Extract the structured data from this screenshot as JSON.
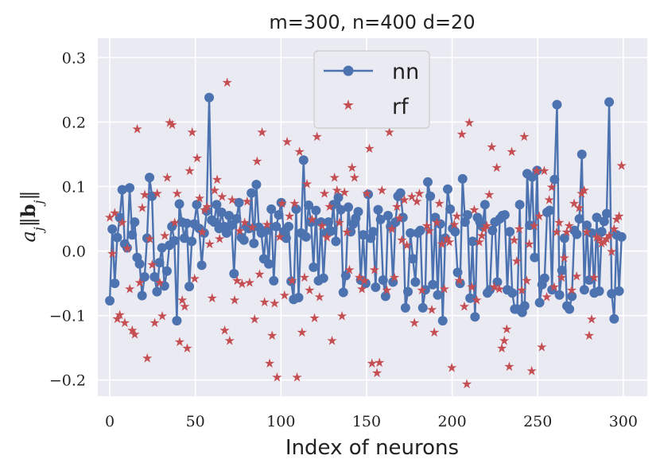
{
  "chart_data": {
    "type": "scatter",
    "title": "m=300, n=400 d=20",
    "xlabel": "Index of neurons",
    "ylabel": "a_j‖b_j‖",
    "xlim": [
      -7,
      314
    ],
    "ylim": [
      -0.225,
      0.33
    ],
    "xticks": [
      0,
      50,
      100,
      150,
      200,
      250,
      300
    ],
    "yticks": [
      -0.2,
      -0.1,
      0.0,
      0.1,
      0.2,
      0.3
    ],
    "ytick_labels": [
      "−0.2",
      "−0.1",
      "0.0",
      "0.1",
      "0.2",
      "0.3"
    ],
    "grid": true,
    "legend_position": "top-center",
    "colors": {
      "nn": "#4c72b0",
      "rf": "#c44e52",
      "background": "#eaeaf2",
      "grid": "#ffffff"
    },
    "series": [
      {
        "name": "nn",
        "style": "line-with-circle-markers",
        "values": [
          -0.077,
          0.034,
          -0.05,
          0.021,
          0.052,
          0.095,
          0.011,
          0.005,
          0.098,
          0.025,
          0.045,
          -0.01,
          -0.02,
          -0.069,
          -0.04,
          0.02,
          0.114,
          0.085,
          -0.04,
          -0.063,
          -0.018,
          0.005,
          -0.054,
          -0.031,
          0.009,
          0.038,
          0.016,
          -0.108,
          0.073,
          0.045,
          0.02,
          0.043,
          -0.055,
          0.015,
          0.042,
          0.072,
          0.035,
          -0.022,
          0.028,
          0.062,
          0.238,
          0.048,
          0.045,
          0.072,
          0.035,
          0.06,
          0.038,
          0.028,
          0.055,
          0.04,
          -0.035,
          0.05,
          0.075,
          0.021,
          0.017,
          0.038,
          0.035,
          0.09,
          0.012,
          0.103,
          0.037,
          0.028,
          -0.012,
          0.032,
          -0.02,
          0.065,
          -0.046,
          0.038,
          0.056,
          0.075,
          0.03,
          0.02,
          0.038,
          -0.047,
          -0.075,
          0.065,
          -0.072,
          0.028,
          0.141,
          0.022,
          0.071,
          0.045,
          -0.025,
          0.063,
          -0.046,
          0.045,
          -0.042,
          0.028,
          0.045,
          0.031,
          0.072,
          0.015,
          0.083,
          0.064,
          -0.064,
          -0.038,
          0.068,
          0.03,
          0.042,
          0.051,
          0.061,
          -0.045,
          0.025,
          -0.05,
          0.088,
          0.02,
          0.03,
          -0.056,
          0.064,
          0.049,
          -0.045,
          -0.07,
          0.055,
          0.038,
          -0.048,
          0.045,
          0.085,
          0.09,
          0.052,
          -0.088,
          -0.063,
          0.028,
          -0.012,
          -0.048,
          0.028,
          0.032,
          -0.088,
          -0.06,
          0.107,
          0.085,
          -0.052,
          0.052,
          -0.068,
          0.042,
          -0.108,
          0.02,
          0.096,
          0.065,
          0.035,
          0.03,
          -0.033,
          -0.05,
          0.112,
          0.045,
          0.056,
          -0.073,
          0.015,
          -0.102,
          0.052,
          0.045,
          0.038,
          0.072,
          -0.065,
          -0.06,
          0.032,
          0.045,
          -0.048,
          0.05,
          0.055,
          0.056,
          -0.06,
          0.03,
          -0.065,
          -0.09,
          -0.09,
          0.072,
          -0.095,
          -0.085,
          0.12,
          0.04,
          0.115,
          -0.01,
          0.125,
          -0.08,
          -0.052,
          -0.042,
          0.06,
          0.063,
          -0.06,
          0.111,
          0.227,
          -0.068,
          -0.03,
          0.02,
          -0.085,
          -0.09,
          -0.07,
          0.032,
          0.026,
          0.05,
          0.15,
          -0.06,
          0.04,
          -0.045,
          0.028,
          -0.065,
          0.052,
          -0.062,
          0.03,
          0.046,
          0.058,
          0.231,
          -0.066,
          -0.105,
          0.025,
          -0.062,
          0.022
        ],
        "note_x": "plotted at neuron indices 0..299 (interpolated sampling)"
      },
      {
        "name": "rf",
        "style": "star-markers",
        "values": [
          0.053,
          -0.003,
          0.06,
          -0.104,
          -0.098,
          0.045,
          -0.11,
          0.005,
          -0.058,
          -0.122,
          -0.128,
          0.19,
          -0.048,
          0.068,
          0.088,
          -0.165,
          0.02,
          -0.02,
          -0.11,
          0.09,
          -0.048,
          -0.1,
          0.025,
          0.115,
          0.2,
          0.197,
          0.045,
          0.09,
          -0.14,
          -0.075,
          -0.085,
          -0.15,
          0.125,
          0.185,
          -0.042,
          0.145,
          0.083,
          0.03,
          0.065,
          0.07,
          0.012,
          -0.072,
          0.095,
          0.112,
          0.02,
          0.085,
          -0.122,
          0.262,
          -0.138,
          0.08,
          -0.075,
          -0.045,
          0.032,
          -0.05,
          0.045,
          0.078,
          -0.048,
          0.038,
          -0.105,
          0.14,
          -0.035,
          0.185,
          -0.078,
          0.042,
          -0.173,
          -0.13,
          -0.08,
          -0.195,
          0.023,
          0.075,
          -0.068,
          0.17,
          0.055,
          -0.045,
          0.075,
          -0.195,
          0.155,
          -0.125,
          -0.04,
          0.105,
          -0.06,
          0.05,
          -0.103,
          0.178,
          -0.07,
          0.04,
          0.09,
          0.022,
          0.07,
          -0.138,
          0.115,
          0.095,
          0.045,
          -0.1,
          0.092,
          0.03,
          -0.028,
          0.13,
          0.115,
          0.215,
          -0.04,
          -0.058,
          -0.045,
          0.09,
          0.16,
          -0.173,
          -0.028,
          -0.188,
          -0.172,
          0.095,
          0.242,
          -0.06,
          0.185,
          0.035,
          -0.04,
          0.07,
          0.052,
          0.018,
          0.08,
          0.01,
          0.225,
          0.085,
          -0.11,
          0.078,
          0.09,
          -0.06,
          0.302,
          0.04,
          0.032,
          -0.09,
          -0.125,
          0.045,
          0.075,
          0.012,
          -0.058,
          0.02,
          0.015,
          -0.18,
          0.042,
          0.055,
          -0.045,
          0.182,
          -0.085,
          -0.205,
          0.2,
          -0.055,
          0.065,
          -0.075,
          0.015,
          0.025,
          0.035,
          0.04,
          0.088,
          0.162,
          -0.055,
          0.13,
          -0.058,
          -0.15,
          -0.138,
          -0.12,
          -0.178,
          0.155,
          0.018,
          -0.015,
          0.035,
          -0.06,
          0.178,
          -0.045,
          0.012,
          -0.185,
          0.04,
          0.125,
          0.055,
          -0.148,
          0.125,
          -0.07,
          0.08,
          0.1,
          -0.055,
          0.03,
          0.045,
          -0.04,
          -0.01,
          0.03,
          0.04,
          -0.06,
          0.075,
          -0.038,
          0.068,
          0.09,
          0.095,
          0.03,
          -0.13,
          -0.105,
          -0.04,
          0.022,
          0.02,
          0.013,
          0.015,
          0.02,
          0.025,
          0.0,
          0.035,
          0.05,
          0.055,
          0.133
        ],
        "note_x": "plotted at neuron indices 0..299 (interpolated sampling)"
      }
    ]
  }
}
